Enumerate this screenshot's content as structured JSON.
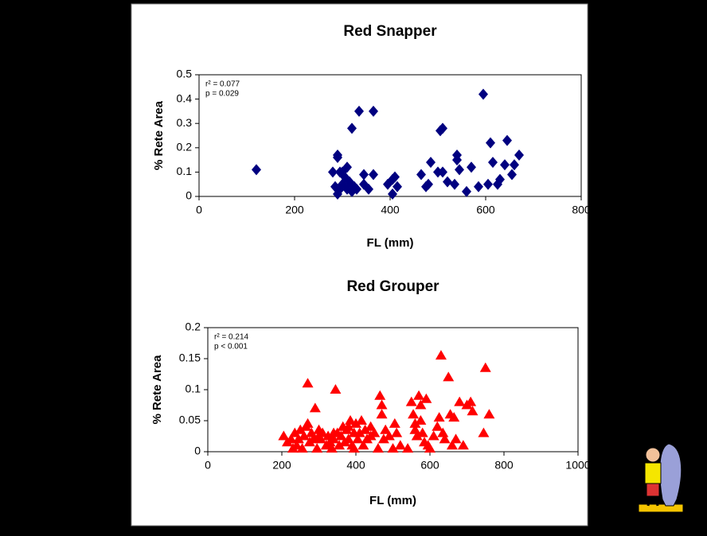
{
  "chart_data": [
    {
      "type": "scatter",
      "title": "Red Snapper",
      "x_label": "FL (mm)",
      "y_label": "% Rete Area",
      "annotations": [
        "r² = 0.077",
        "p = 0.029"
      ],
      "marker": "diamond",
      "color": "#000080",
      "xlim": [
        0,
        800
      ],
      "xticks": [
        0,
        200,
        400,
        600,
        800
      ],
      "ylim": [
        0,
        0.5
      ],
      "yticks": [
        0,
        0.1,
        0.2,
        0.3,
        0.4,
        0.5
      ],
      "x": [
        120,
        280,
        290,
        290,
        295,
        290,
        295,
        300,
        305,
        310,
        310,
        315,
        320,
        320,
        325,
        330,
        335,
        345,
        345,
        355,
        365,
        365,
        395,
        405,
        405,
        410,
        415,
        465,
        475,
        480,
        485,
        500,
        505,
        510,
        510,
        520,
        535,
        540,
        540,
        545,
        560,
        570,
        585,
        595,
        605,
        610,
        615,
        625,
        630,
        640,
        645,
        655,
        660,
        670,
        300,
        285
      ],
      "values": [
        0.11,
        0.1,
        0.17,
        0.16,
        0.1,
        0.01,
        0.03,
        0.05,
        0.08,
        0.12,
        0.03,
        0.06,
        0.28,
        0.02,
        0.04,
        0.03,
        0.35,
        0.09,
        0.05,
        0.03,
        0.35,
        0.09,
        0.05,
        0.01,
        0.07,
        0.08,
        0.04,
        0.09,
        0.04,
        0.05,
        0.14,
        0.1,
        0.27,
        0.28,
        0.1,
        0.06,
        0.05,
        0.17,
        0.15,
        0.11,
        0.02,
        0.12,
        0.04,
        0.42,
        0.05,
        0.22,
        0.14,
        0.05,
        0.07,
        0.13,
        0.23,
        0.09,
        0.13,
        0.17,
        0.1,
        0.04
      ]
    },
    {
      "type": "scatter",
      "title": "Red Grouper",
      "x_label": "FL (mm)",
      "y_label": "% Rete Area",
      "annotations": [
        "r² = 0.214",
        "p < 0.001"
      ],
      "marker": "triangle",
      "color": "#ff0000",
      "xlim": [
        0,
        1000
      ],
      "xticks": [
        0,
        200,
        400,
        600,
        800,
        1000
      ],
      "ylim": [
        0,
        0.2
      ],
      "yticks": [
        0,
        0.05,
        0.1,
        0.15,
        0.2
      ],
      "x": [
        205,
        215,
        225,
        230,
        235,
        240,
        245,
        250,
        255,
        260,
        265,
        270,
        275,
        280,
        285,
        290,
        295,
        300,
        305,
        310,
        320,
        325,
        330,
        335,
        340,
        345,
        350,
        355,
        360,
        365,
        370,
        375,
        380,
        385,
        390,
        395,
        400,
        405,
        410,
        420,
        425,
        430,
        440,
        450,
        460,
        465,
        470,
        475,
        480,
        490,
        500,
        505,
        510,
        520,
        540,
        550,
        555,
        560,
        565,
        570,
        575,
        580,
        585,
        590,
        595,
        600,
        610,
        620,
        625,
        630,
        635,
        640,
        650,
        655,
        660,
        665,
        670,
        680,
        690,
        700,
        710,
        715,
        745,
        750,
        760,
        270,
        340,
        300,
        380,
        395,
        415,
        440,
        470,
        560,
        575
      ],
      "values": [
        0.025,
        0.015,
        0.02,
        0.005,
        0.03,
        0.01,
        0.02,
        0.035,
        0.005,
        0.025,
        0.04,
        0.11,
        0.015,
        0.03,
        0.02,
        0.07,
        0.005,
        0.035,
        0.02,
        0.03,
        0.01,
        0.025,
        0.015,
        0.005,
        0.02,
        0.1,
        0.03,
        0.01,
        0.025,
        0.04,
        0.015,
        0.035,
        0.02,
        0.05,
        0.01,
        0.03,
        0.045,
        0.02,
        0.03,
        0.01,
        0.035,
        0.02,
        0.04,
        0.03,
        0.005,
        0.09,
        0.06,
        0.02,
        0.035,
        0.025,
        0.005,
        0.045,
        0.03,
        0.01,
        0.005,
        0.08,
        0.06,
        0.045,
        0.025,
        0.09,
        0.05,
        0.03,
        0.015,
        0.085,
        0.01,
        0.005,
        0.025,
        0.04,
        0.055,
        0.155,
        0.03,
        0.02,
        0.12,
        0.06,
        0.01,
        0.055,
        0.02,
        0.08,
        0.01,
        0.075,
        0.08,
        0.065,
        0.03,
        0.135,
        0.06,
        0.045,
        0.03,
        0.025,
        0.04,
        0.005,
        0.05,
        0.025,
        0.075,
        0.035,
        0.075
      ]
    }
  ]
}
